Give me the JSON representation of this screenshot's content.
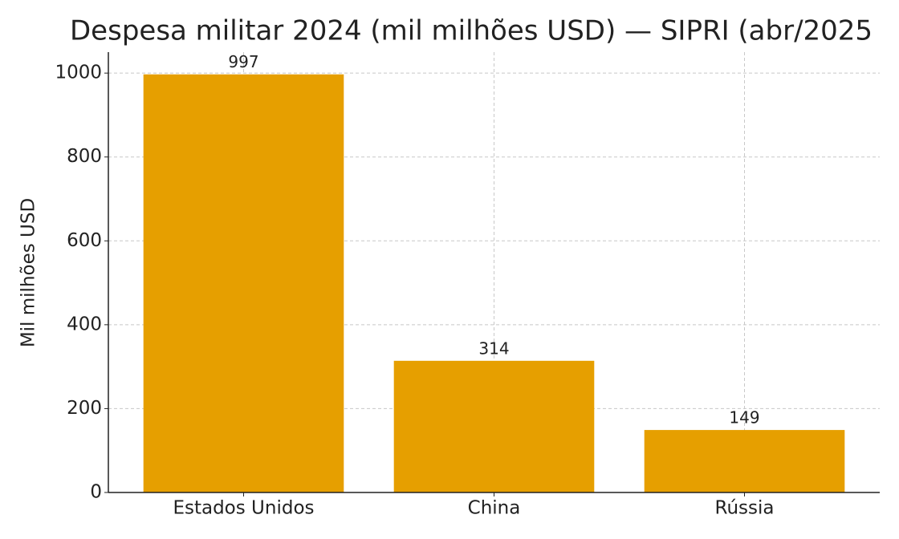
{
  "chart_data": {
    "type": "bar",
    "title": "Despesa militar 2024 (mil milhões USD) — SIPRI (abr/2025",
    "y_label": "Mil milhões USD",
    "categories": [
      "Estados Unidos",
      "China",
      "Rússia"
    ],
    "values": [
      997,
      314,
      149
    ],
    "color": "#e69f00",
    "ylim": [
      0,
      1050
    ],
    "yticks": [
      0,
      200,
      400,
      600,
      800,
      1000
    ],
    "grid": true
  }
}
